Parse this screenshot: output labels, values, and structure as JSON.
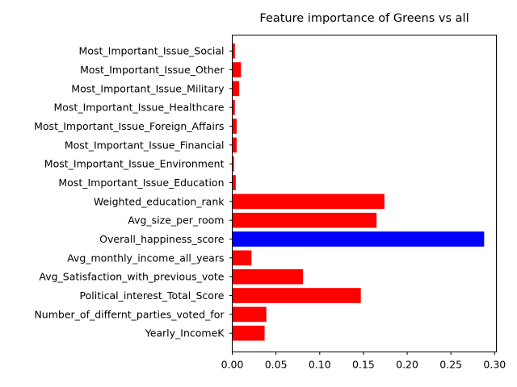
{
  "chart_data": {
    "type": "bar",
    "orientation": "horizontal",
    "title": "Feature importance of Greens vs all",
    "xlabel": "",
    "ylabel": "",
    "xlim": [
      0,
      0.302
    ],
    "xticks": [
      "0.00",
      "0.05",
      "0.10",
      "0.15",
      "0.20",
      "0.25",
      "0.30"
    ],
    "grid": false,
    "colors": {
      "default": "#ff0000",
      "highlight": "#0000ff"
    },
    "categories": [
      "Most_Important_Issue_Social",
      "Most_Important_Issue_Other",
      "Most_Important_Issue_Military",
      "Most_Important_Issue_Healthcare",
      "Most_Important_Issue_Foreign_Affairs",
      "Most_Important_Issue_Financial",
      "Most_Important_Issue_Environment",
      "Most_Important_Issue_Education",
      "Weighted_education_rank",
      "Avg_size_per_room",
      "Overall_happiness_score",
      "Avg_monthly_income_all_years",
      "Avg_Satisfaction_with_previous_vote",
      "Political_interest_Total_Score",
      "Number_of_differnt_parties_voted_for",
      "Yearly_IncomeK"
    ],
    "values": [
      0.003,
      0.01,
      0.008,
      0.003,
      0.005,
      0.005,
      0.002,
      0.004,
      0.174,
      0.165,
      0.288,
      0.022,
      0.081,
      0.147,
      0.039,
      0.037
    ],
    "bar_colors": [
      "#ff0000",
      "#ff0000",
      "#ff0000",
      "#ff0000",
      "#ff0000",
      "#ff0000",
      "#ff0000",
      "#ff0000",
      "#ff0000",
      "#ff0000",
      "#0000ff",
      "#ff0000",
      "#ff0000",
      "#ff0000",
      "#ff0000",
      "#ff0000"
    ]
  }
}
